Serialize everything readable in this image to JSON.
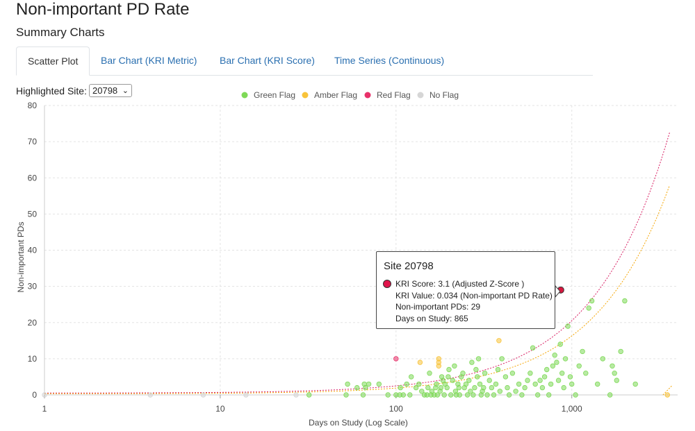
{
  "header": {
    "title": "Non-important PD Rate",
    "subtitle": "Summary Charts"
  },
  "tabs": [
    {
      "label": "Scatter Plot",
      "active": true
    },
    {
      "label": "Bar Chart (KRI Metric)",
      "active": false
    },
    {
      "label": "Bar Chart (KRI Score)",
      "active": false
    },
    {
      "label": "Time Series (Continuous)",
      "active": false
    }
  ],
  "site_selector": {
    "label": "Highlighted Site:",
    "value": "20798"
  },
  "colors": {
    "green": "#7ed957",
    "amber": "#f8c33a",
    "red": "#e8316a",
    "none": "#d6d6d6",
    "highlight": "#d8173f",
    "red_threshold": "#d81b60",
    "amber_threshold": "#f5a500"
  },
  "tooltip": {
    "title": "Site 20798",
    "lines": [
      "KRI Score: 3.1 (Adjusted Z-Score )",
      "KRI Value: 0.034 (Non-important PD Rate)",
      "Non-important PDs: 29",
      "Days on Study: 865"
    ]
  },
  "chart_data": {
    "type": "scatter",
    "xlabel": "Days on Study (Log Scale)",
    "ylabel": "Non-important PDs",
    "x_scale": "log",
    "xlim": [
      1,
      4000
    ],
    "ylim": [
      0,
      80
    ],
    "x_ticks": [
      {
        "value": 1,
        "label": "1"
      },
      {
        "value": 10,
        "label": "10"
      },
      {
        "value": 100,
        "label": "100"
      },
      {
        "value": 1000,
        "label": "1,000"
      }
    ],
    "y_ticks": [
      0,
      10,
      20,
      30,
      40,
      50,
      60,
      70,
      80
    ],
    "grid": true,
    "legend_position": "top-center",
    "legend": [
      {
        "label": "Green Flag",
        "flag": "green"
      },
      {
        "label": "Amber Flag",
        "flag": "amber"
      },
      {
        "label": "Red Flag",
        "flag": "red"
      },
      {
        "label": "No Flag",
        "flag": "none"
      }
    ],
    "thresholds": [
      {
        "flag": "red",
        "rate": 0.02,
        "offset": 0.5
      },
      {
        "flag": "amber",
        "rate": 0.016,
        "offset": 0.3
      }
    ],
    "highlighted": {
      "site": "20798",
      "x": 865,
      "y": 29,
      "flag": "red"
    },
    "series": [
      {
        "flag": "none",
        "points": [
          [
            1,
            0
          ],
          [
            4,
            0
          ],
          [
            8,
            0
          ],
          [
            14,
            0
          ],
          [
            27,
            0
          ]
        ]
      },
      {
        "flag": "red",
        "points": [
          [
            100,
            10
          ]
        ]
      },
      {
        "flag": "amber",
        "points": [
          [
            137,
            9
          ],
          [
            175,
            10
          ],
          [
            175,
            9
          ],
          [
            175,
            8
          ],
          [
            385,
            15
          ],
          [
            3500,
            0
          ]
        ]
      },
      {
        "flag": "green",
        "points": [
          [
            32,
            0
          ],
          [
            52,
            0
          ],
          [
            53,
            3
          ],
          [
            60,
            2
          ],
          [
            65,
            0
          ],
          [
            66,
            3
          ],
          [
            67,
            2
          ],
          [
            70,
            3
          ],
          [
            80,
            3
          ],
          [
            90,
            0
          ],
          [
            100,
            0
          ],
          [
            105,
            0
          ],
          [
            106,
            2
          ],
          [
            110,
            0
          ],
          [
            115,
            3
          ],
          [
            120,
            0
          ],
          [
            122,
            5
          ],
          [
            130,
            2
          ],
          [
            135,
            3
          ],
          [
            140,
            1
          ],
          [
            145,
            0
          ],
          [
            150,
            0
          ],
          [
            152,
            2
          ],
          [
            155,
            6
          ],
          [
            158,
            0
          ],
          [
            160,
            1
          ],
          [
            165,
            0
          ],
          [
            168,
            2
          ],
          [
            170,
            3
          ],
          [
            172,
            0
          ],
          [
            178,
            1
          ],
          [
            180,
            2
          ],
          [
            182,
            5
          ],
          [
            185,
            4
          ],
          [
            188,
            0
          ],
          [
            190,
            3
          ],
          [
            195,
            2
          ],
          [
            198,
            5
          ],
          [
            200,
            7
          ],
          [
            205,
            0
          ],
          [
            210,
            4
          ],
          [
            215,
            8
          ],
          [
            218,
            1
          ],
          [
            220,
            0
          ],
          [
            225,
            3
          ],
          [
            228,
            2
          ],
          [
            230,
            0
          ],
          [
            235,
            5
          ],
          [
            240,
            6
          ],
          [
            245,
            2
          ],
          [
            250,
            3
          ],
          [
            255,
            0
          ],
          [
            260,
            4
          ],
          [
            265,
            1
          ],
          [
            270,
            9
          ],
          [
            275,
            0
          ],
          [
            280,
            2
          ],
          [
            285,
            7
          ],
          [
            290,
            5
          ],
          [
            295,
            10
          ],
          [
            300,
            3
          ],
          [
            305,
            0
          ],
          [
            310,
            1
          ],
          [
            315,
            2
          ],
          [
            320,
            6
          ],
          [
            330,
            0
          ],
          [
            340,
            4
          ],
          [
            350,
            2
          ],
          [
            360,
            0
          ],
          [
            370,
            3
          ],
          [
            380,
            7
          ],
          [
            390,
            1
          ],
          [
            400,
            10
          ],
          [
            420,
            5
          ],
          [
            430,
            2
          ],
          [
            440,
            0
          ],
          [
            460,
            6
          ],
          [
            480,
            1
          ],
          [
            500,
            3
          ],
          [
            520,
            0
          ],
          [
            540,
            2
          ],
          [
            560,
            4
          ],
          [
            580,
            6
          ],
          [
            600,
            13
          ],
          [
            620,
            3
          ],
          [
            640,
            0
          ],
          [
            660,
            4
          ],
          [
            680,
            2
          ],
          [
            700,
            5
          ],
          [
            720,
            7
          ],
          [
            740,
            0
          ],
          [
            760,
            3
          ],
          [
            780,
            8
          ],
          [
            800,
            11
          ],
          [
            820,
            9
          ],
          [
            840,
            4
          ],
          [
            860,
            14
          ],
          [
            880,
            6
          ],
          [
            900,
            2
          ],
          [
            920,
            10
          ],
          [
            950,
            19
          ],
          [
            980,
            5
          ],
          [
            1000,
            3
          ],
          [
            1050,
            0
          ],
          [
            1100,
            8
          ],
          [
            1150,
            12
          ],
          [
            1200,
            6
          ],
          [
            1250,
            24
          ],
          [
            1300,
            26
          ],
          [
            1400,
            3
          ],
          [
            1500,
            10
          ],
          [
            1650,
            0
          ],
          [
            1700,
            8
          ],
          [
            1750,
            6
          ],
          [
            1800,
            4
          ],
          [
            1900,
            12
          ],
          [
            2000,
            26
          ],
          [
            2300,
            3
          ]
        ]
      }
    ]
  }
}
